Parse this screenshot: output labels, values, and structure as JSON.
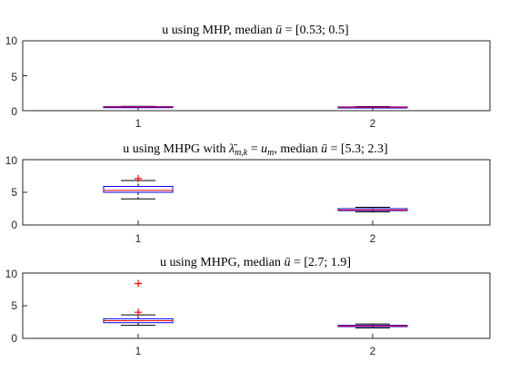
{
  "chart_data": [
    {
      "type": "box",
      "title": {
        "pre": "u using MHP, median ",
        "ubar": "ū",
        "post": " = [0.53; 0.5]"
      },
      "categories": [
        "1",
        "2"
      ],
      "ylim": [
        0,
        10
      ],
      "yticks": [
        "0",
        "5",
        "10"
      ],
      "boxes": [
        {
          "whisker_low": 0.46,
          "q1": 0.48,
          "median": 0.53,
          "q3": 0.58,
          "whisker_high": 0.62,
          "outliers": []
        },
        {
          "whisker_low": 0.42,
          "q1": 0.46,
          "median": 0.5,
          "q3": 0.54,
          "whisker_high": 0.58,
          "outliers": []
        }
      ]
    },
    {
      "type": "box",
      "title": {
        "pre": "u using MHPG with ",
        "lam": "λ̄",
        "lam_sub": "m,k",
        "mid": " = ",
        "um": "u",
        "um_sub": "m",
        "sep": ", median ",
        "ubar": "ū",
        "post": " = [5.3; 2.3]"
      },
      "categories": [
        "1",
        "2"
      ],
      "ylim": [
        0,
        10
      ],
      "yticks": [
        "0",
        "5",
        "10"
      ],
      "boxes": [
        {
          "whisker_low": 4.0,
          "q1": 5.0,
          "median": 5.3,
          "q3": 5.9,
          "whisker_high": 6.8,
          "outliers": [
            7.1
          ]
        },
        {
          "whisker_low": 2.0,
          "q1": 2.2,
          "median": 2.3,
          "q3": 2.5,
          "whisker_high": 2.7,
          "outliers": []
        }
      ]
    },
    {
      "type": "box",
      "title": {
        "pre": "u using MHPG, median ",
        "ubar": "ū",
        "post": " = [2.7; 1.9]"
      },
      "categories": [
        "1",
        "2"
      ],
      "ylim": [
        0,
        10
      ],
      "yticks": [
        "0",
        "5",
        "10"
      ],
      "boxes": [
        {
          "whisker_low": 2.0,
          "q1": 2.4,
          "median": 2.7,
          "q3": 3.0,
          "whisker_high": 3.6,
          "outliers": [
            4.0,
            8.4
          ]
        },
        {
          "whisker_low": 1.6,
          "q1": 1.8,
          "median": 1.9,
          "q3": 2.0,
          "whisker_high": 2.2,
          "outliers": []
        }
      ]
    }
  ],
  "colors": {
    "box": "#0000ff",
    "median": "#ff0000",
    "whisker": "#000000",
    "outlier": "#ff0000",
    "axis": "#262626"
  }
}
